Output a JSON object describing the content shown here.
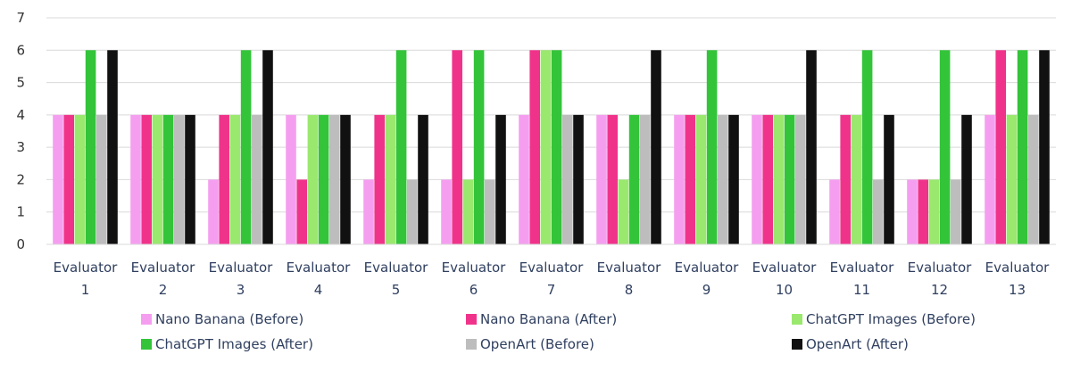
{
  "chart_data": {
    "type": "bar",
    "title": "",
    "xlabel": "",
    "ylabel": "",
    "ylim": [
      0,
      7
    ],
    "yticks": [
      0,
      1,
      2,
      3,
      4,
      5,
      6,
      7
    ],
    "grid": true,
    "legend_position": "bottom",
    "categories": [
      [
        "Evaluator",
        "1"
      ],
      [
        "Evaluator",
        "2"
      ],
      [
        "Evaluator",
        "3"
      ],
      [
        "Evaluator",
        "4"
      ],
      [
        "Evaluator",
        "5"
      ],
      [
        "Evaluator",
        "6"
      ],
      [
        "Evaluator",
        "7"
      ],
      [
        "Evaluator",
        "8"
      ],
      [
        "Evaluator",
        "9"
      ],
      [
        "Evaluator",
        "10"
      ],
      [
        "Evaluator",
        "11"
      ],
      [
        "Evaluator",
        "12"
      ],
      [
        "Evaluator",
        "13"
      ]
    ],
    "series": [
      {
        "name": "Nano Banana (Before)",
        "color": "#f59ef0",
        "values": [
          4,
          4,
          2,
          4,
          2,
          2,
          4,
          4,
          4,
          4,
          2,
          2,
          4
        ]
      },
      {
        "name": "Nano Banana (After)",
        "color": "#f0338a",
        "values": [
          4,
          4,
          4,
          2,
          4,
          6,
          6,
          4,
          4,
          4,
          4,
          2,
          6
        ]
      },
      {
        "name": "ChatGPT Images (Before)",
        "color": "#9ae86e",
        "values": [
          4,
          4,
          4,
          4,
          4,
          2,
          6,
          2,
          4,
          4,
          4,
          2,
          4
        ]
      },
      {
        "name": "ChatGPT Images (After)",
        "color": "#33c43a",
        "values": [
          6,
          4,
          6,
          4,
          6,
          6,
          6,
          4,
          6,
          4,
          6,
          6,
          6
        ]
      },
      {
        "name": "OpenArt (Before)",
        "color": "#bdbdbd",
        "values": [
          4,
          4,
          4,
          4,
          2,
          2,
          4,
          4,
          4,
          4,
          2,
          2,
          4
        ]
      },
      {
        "name": "OpenArt (After)",
        "color": "#111111",
        "values": [
          6,
          4,
          6,
          4,
          4,
          4,
          4,
          6,
          4,
          6,
          4,
          4,
          6
        ]
      }
    ]
  }
}
